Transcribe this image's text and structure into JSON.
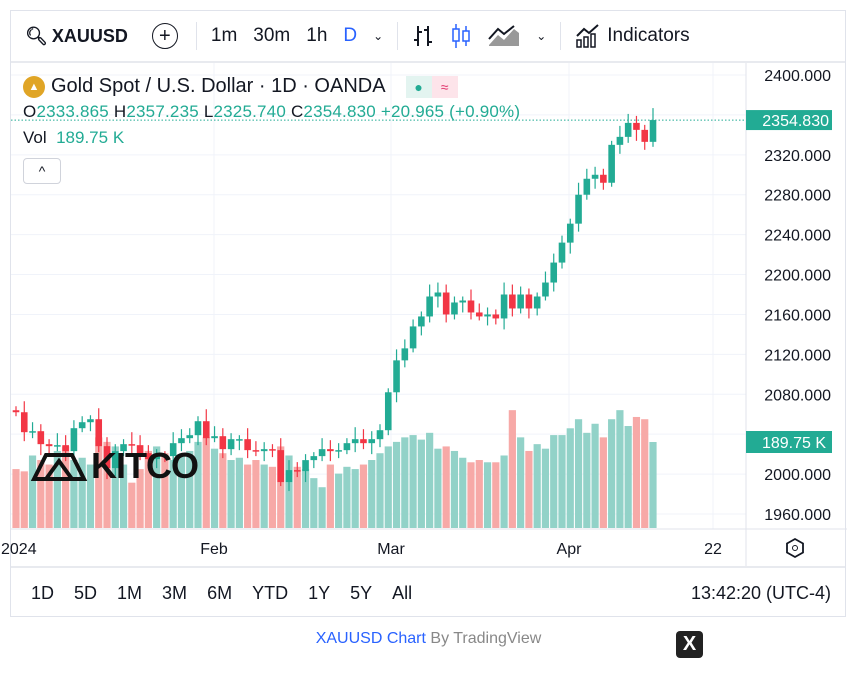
{
  "toolbar": {
    "symbol": "XAUUSD",
    "add_symbol": "+",
    "intervals": [
      "1m",
      "30m",
      "1h",
      "D"
    ],
    "indicators": "Indicators"
  },
  "legend": {
    "title": "Gold Spot / U.S. Dollar · 1D · OANDA",
    "o_label": "O",
    "o": "2333.865",
    "h_label": "H",
    "h": "2357.235",
    "l_label": "L",
    "l": "2325.740",
    "c_label": "C",
    "c": "2354.830",
    "change": "+20.965 (+0.90%)",
    "vol_label": "Vol",
    "vol": "189.75 K",
    "collapse": "^"
  },
  "watermark": "KITCO",
  "price_axis": {
    "ticks": [
      "2400.000",
      "2320.000",
      "2280.000",
      "2240.000",
      "2200.000",
      "2160.000",
      "2120.000",
      "2080.000",
      "2000.000",
      "1960.000"
    ],
    "last_price": "2354.830",
    "last_volume": "189.75 K"
  },
  "time_axis": {
    "labels": [
      "2024",
      "Feb",
      "Mar",
      "Apr",
      "22"
    ]
  },
  "ranges": [
    "1D",
    "5D",
    "1M",
    "3M",
    "6M",
    "YTD",
    "1Y",
    "5Y",
    "All"
  ],
  "clock": "13:42:20 (UTC-4)",
  "footer": {
    "link": "XAUUSD Chart",
    "by": " By TradingView"
  },
  "close_button": "X",
  "colors": {
    "up": "#22ab94",
    "down": "#f23645",
    "up_vol": "#92d2c8",
    "down_vol": "#f7a9a7"
  },
  "chart_data": {
    "type": "candlestick",
    "ylim": [
      1960,
      2400
    ],
    "first_open": 2064,
    "closes": [
      2062,
      2042,
      2043,
      2030,
      2028,
      2029,
      2023,
      2046,
      2052,
      2055,
      2028,
      2006,
      2023,
      2030,
      2029,
      2021,
      2015,
      2019,
      2018,
      2031,
      2036,
      2039,
      2053,
      2036,
      2038,
      2025,
      2035,
      2035,
      2024,
      2023,
      2025,
      2024,
      1992,
      2004,
      2003,
      2014,
      2018,
      2025,
      2023,
      2024,
      2031,
      2035,
      2031,
      2035,
      2044,
      2082,
      2114,
      2126,
      2148,
      2158,
      2178,
      2182,
      2160,
      2172,
      2174,
      2162,
      2158,
      2160,
      2156,
      2180,
      2166,
      2180,
      2166,
      2178,
      2192,
      2212,
      2232,
      2251,
      2280,
      2296,
      2300,
      2292,
      2330,
      2338,
      2352,
      2345,
      2333,
      2354.83
    ],
    "volumes": [
      130,
      125,
      160,
      150,
      140,
      170,
      180,
      150,
      155,
      140,
      200,
      190,
      180,
      140,
      100,
      130,
      170,
      180,
      165,
      150,
      160,
      170,
      190,
      200,
      175,
      165,
      150,
      155,
      140,
      150,
      140,
      135,
      180,
      160,
      135,
      130,
      110,
      90,
      140,
      120,
      135,
      130,
      140,
      150,
      165,
      180,
      190,
      200,
      205,
      195,
      210,
      175,
      180,
      170,
      155,
      145,
      150,
      145,
      145,
      160,
      260,
      200,
      170,
      185,
      175,
      205,
      205,
      220,
      240,
      210,
      230,
      200,
      240,
      260,
      225,
      245,
      240,
      189.75
    ]
  }
}
